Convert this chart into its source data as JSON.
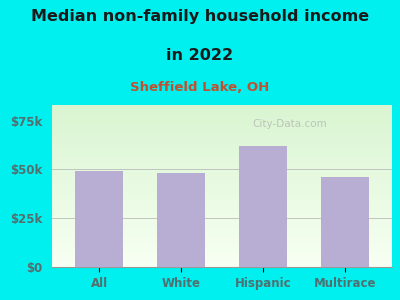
{
  "title_line1": "Median non-family household income",
  "title_line2": "in 2022",
  "subtitle": "Sheffield Lake, OH",
  "categories": [
    "All",
    "White",
    "Hispanic",
    "Multirace"
  ],
  "values": [
    49000,
    48000,
    62000,
    46000
  ],
  "bar_color": "#b8aed4",
  "background_color": "#00EFEF",
  "title_color": "#1a1a1a",
  "subtitle_color": "#c05030",
  "axis_label_color": "#507070",
  "ytick_labels": [
    "$0",
    "$25k",
    "$50k",
    "$75k"
  ],
  "ytick_values": [
    0,
    25000,
    50000,
    75000
  ],
  "ylim": [
    0,
    83000
  ],
  "watermark": "City-Data.com",
  "title_fontsize": 11.5,
  "subtitle_fontsize": 9.5
}
